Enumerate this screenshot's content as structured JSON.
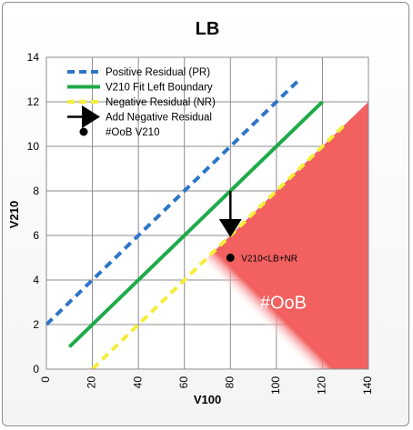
{
  "chart_data": {
    "type": "line",
    "title": "LB",
    "xlabel": "V100",
    "ylabel": "V210",
    "xlim": [
      0,
      140
    ],
    "ylim": [
      0,
      14
    ],
    "xticks": [
      0,
      20,
      40,
      60,
      80,
      100,
      120,
      140
    ],
    "yticks": [
      0,
      2,
      4,
      6,
      8,
      10,
      12,
      14
    ],
    "grid": true,
    "legend_position": "top-left",
    "series": [
      {
        "name": "Positive Residual (PR)",
        "style": "dashed",
        "color": "#2e75c8",
        "x": [
          0,
          110
        ],
        "y": [
          2,
          13
        ]
      },
      {
        "name": "V210 Fit Left Boundary",
        "style": "solid",
        "color": "#1faa4a",
        "x": [
          10,
          120
        ],
        "y": [
          1,
          12
        ]
      },
      {
        "name": "Negative Residual (NR)",
        "style": "dashed",
        "color": "#f5ee3a",
        "x": [
          20,
          130
        ],
        "y": [
          0,
          11
        ]
      },
      {
        "name": "Add Negative Residual",
        "style": "arrow",
        "color": "#000000",
        "x": [
          80,
          80
        ],
        "y": [
          8,
          6
        ]
      },
      {
        "name": "#OoB V210",
        "style": "marker",
        "color": "#000000",
        "x": [
          80
        ],
        "y": [
          5
        ]
      }
    ],
    "oob_region": {
      "label": "#OoB",
      "color": "#f26060",
      "vertices_x": [
        20,
        140,
        140
      ],
      "vertices_y": [
        0,
        0,
        12
      ]
    },
    "annotations": [
      {
        "text": "V210<LB+NR",
        "x": 80,
        "y": 5
      },
      {
        "text": "#OoB",
        "x": 103,
        "y": 3
      }
    ]
  }
}
